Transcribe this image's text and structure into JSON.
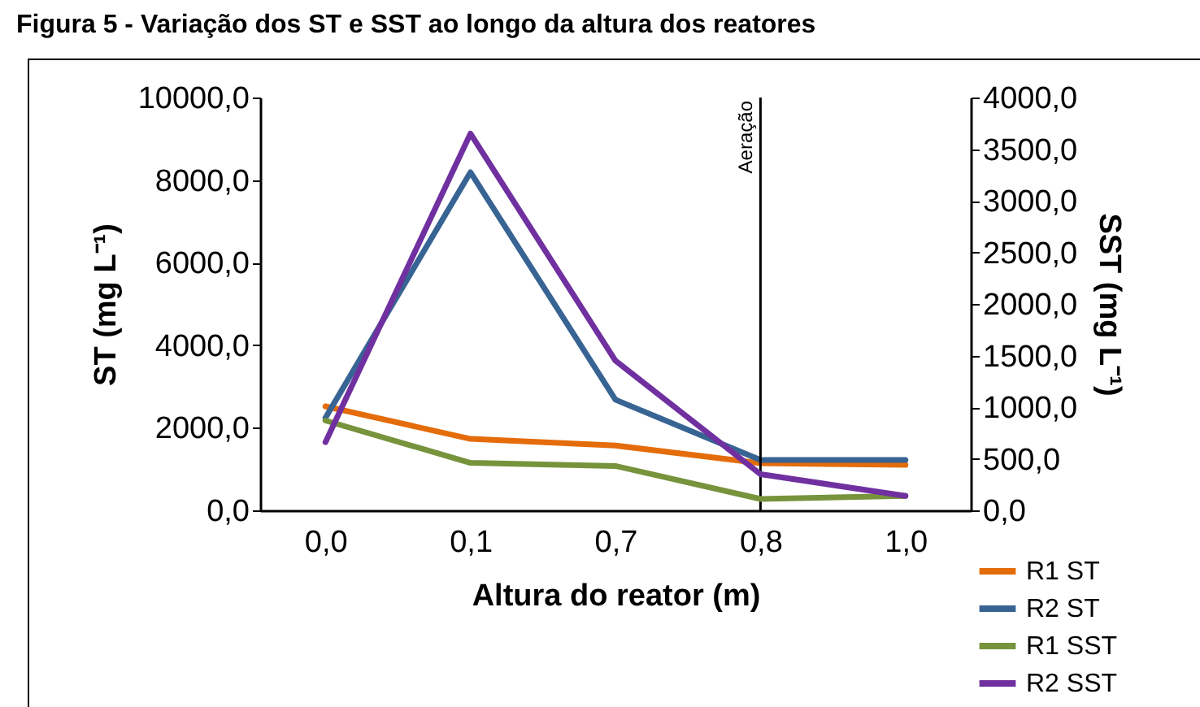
{
  "chart_data": {
    "type": "line",
    "title": "Figura 5 - Variação dos ST e SST ao longo da altura dos reatores",
    "xlabel": "Altura do reator (m)",
    "ylabel": "ST (mg L⁻¹)",
    "y2label": "SST (mg L⁻¹)",
    "categories": [
      "0,0",
      "0,1",
      "0,7",
      "0,8",
      "1,0"
    ],
    "series": [
      {
        "name": "R1 ST",
        "color": "#e46c0a",
        "values": [
          2520,
          1730,
          1570,
          1140,
          1100
        ]
      },
      {
        "name": "R2 ST",
        "color": "#386494",
        "values": [
          2240,
          8190,
          2680,
          1220,
          1220
        ]
      },
      {
        "name": "R1 SST",
        "color": "#77933c",
        "axis": "y2",
        "values": [
          870,
          460,
          430,
          110,
          140
        ]
      },
      {
        "name": "R2 SST",
        "color": "#7030a0",
        "axis": "y2",
        "values": [
          660,
          3650,
          1450,
          350,
          140
        ]
      }
    ],
    "ylim": [
      0,
      10000
    ],
    "yticks": [
      {
        "value": 0,
        "label": "0,0"
      },
      {
        "value": 2000,
        "label": "2000,0"
      },
      {
        "value": 4000,
        "label": "4000,0"
      },
      {
        "value": 6000,
        "label": "6000,0"
      },
      {
        "value": 8000,
        "label": "8000,0"
      },
      {
        "value": 10000,
        "label": "10000,0"
      }
    ],
    "y2lim": [
      0,
      4000
    ],
    "y2ticks": [
      {
        "value": 0,
        "label": "0,0"
      },
      {
        "value": 500,
        "label": "500,0"
      },
      {
        "value": 1000,
        "label": "1000,0"
      },
      {
        "value": 1500,
        "label": "1500,0"
      },
      {
        "value": 2000,
        "label": "2000,0"
      },
      {
        "value": 2500,
        "label": "2500,0"
      },
      {
        "value": 3000,
        "label": "3000,0"
      },
      {
        "value": 3500,
        "label": "3500,0"
      },
      {
        "value": 4000,
        "label": "4000,0"
      }
    ],
    "ref_lines": [
      {
        "axis": "x",
        "value": "0,8",
        "label": "Aeração",
        "color": "#000000"
      }
    ],
    "grid": false,
    "legend": "bottom right"
  }
}
